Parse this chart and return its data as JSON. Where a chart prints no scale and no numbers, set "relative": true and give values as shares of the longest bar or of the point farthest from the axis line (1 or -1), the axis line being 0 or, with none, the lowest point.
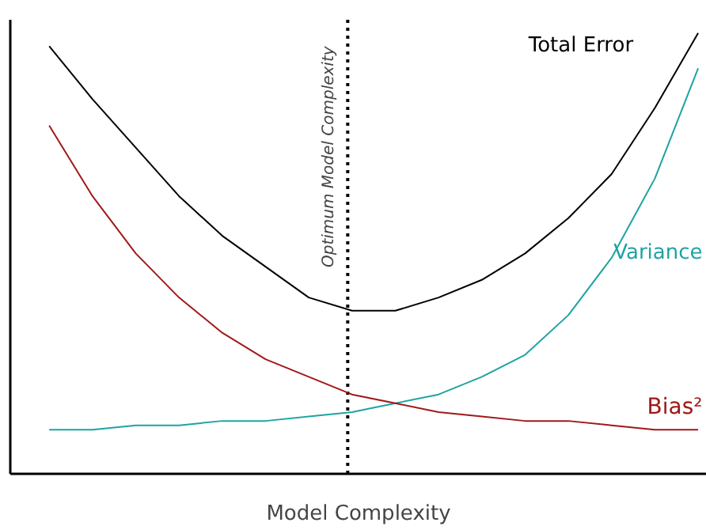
{
  "chart_data": {
    "type": "line",
    "relative": true,
    "xlabel": "Model Complexity",
    "categories": [
      null,
      null,
      null,
      null,
      null,
      null,
      null,
      null,
      null,
      null,
      null,
      null,
      null,
      null,
      null,
      null
    ],
    "series": [
      {
        "name": "Total Error",
        "color": "#000000",
        "values": [
          0.97,
          0.85,
          0.74,
          0.63,
          0.54,
          0.47,
          0.4,
          0.37,
          0.37,
          0.4,
          0.44,
          0.5,
          0.58,
          0.68,
          0.83,
          1.0
        ]
      },
      {
        "name": "Variance",
        "color": "#1fa3a3",
        "values": [
          0.1,
          0.1,
          0.11,
          0.11,
          0.12,
          0.12,
          0.13,
          0.14,
          0.16,
          0.18,
          0.22,
          0.27,
          0.36,
          0.49,
          0.67,
          0.92
        ]
      },
      {
        "name": "Bias²",
        "color": "#a01818",
        "values": [
          0.79,
          0.63,
          0.5,
          0.4,
          0.32,
          0.26,
          0.22,
          0.18,
          0.16,
          0.14,
          0.13,
          0.12,
          0.12,
          0.11,
          0.1,
          0.1
        ]
      }
    ],
    "annotations": [
      "Optimum Model Complexity"
    ],
    "grid": false,
    "tick_labels": false
  }
}
